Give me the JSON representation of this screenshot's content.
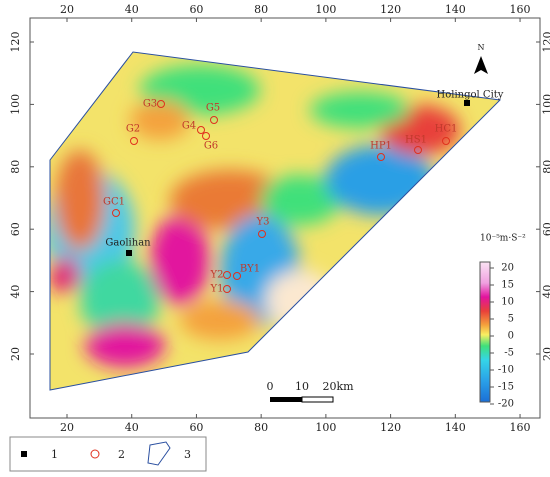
{
  "axes": {
    "xticks": [
      20,
      40,
      60,
      80,
      100,
      120,
      140,
      160
    ],
    "yticks": [
      20,
      40,
      60,
      80,
      100,
      120
    ]
  },
  "north": "N",
  "places": [
    "Holingol City",
    "Gaolihan"
  ],
  "stations": [
    "G3",
    "G5",
    "G4",
    "G6",
    "G2",
    "GC1",
    "Y3",
    "Y2",
    "BY1",
    "Y1",
    "HP1",
    "HS1",
    "HC1"
  ],
  "colorbar": {
    "unit": "10⁻⁵m·S⁻²",
    "ticks": [
      20,
      15,
      10,
      5,
      0,
      -5,
      -10,
      -15,
      -20
    ]
  },
  "scale_bar": {
    "labels": [
      "0",
      "10",
      "20km"
    ]
  },
  "legend": [
    "1",
    "2",
    "3"
  ]
}
